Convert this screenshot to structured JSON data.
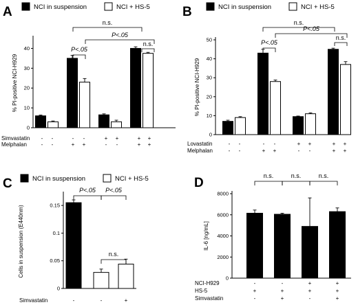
{
  "legend": {
    "filled_label": "NCI in suspension",
    "open_label": "NCI + HS-5",
    "filled_color": "#000000",
    "open_color": "#ffffff"
  },
  "chart_data": [
    {
      "panel": "A",
      "type": "bar",
      "ylabel": "% PI-positive NCI-H929",
      "ylim": [
        0,
        45
      ],
      "yticks": [
        "0",
        "10",
        "20",
        "30",
        "40"
      ],
      "series": [
        {
          "name": "NCI in suspension",
          "values": [
            6,
            35,
            6.5,
            40
          ],
          "errors": [
            0.4,
            1.5,
            0.5,
            0.8
          ]
        },
        {
          "name": "NCI + HS-5",
          "values": [
            3,
            23,
            3,
            37.5
          ],
          "errors": [
            0.4,
            1.8,
            0.8,
            0.5
          ]
        }
      ],
      "conditions": [
        {
          "label": "Simvastatin",
          "signs": [
            "-",
            "-",
            "-",
            "-",
            "+",
            "+",
            "+",
            "+"
          ]
        },
        {
          "label": "Melphalan",
          "signs": [
            "-",
            "-",
            "+",
            "+",
            "-",
            "-",
            "+",
            "+"
          ]
        }
      ],
      "annotations": [
        "P<.05",
        "n.s.",
        "P<.05",
        "n.s."
      ]
    },
    {
      "panel": "B",
      "type": "bar",
      "ylabel": "% PI-positive NCI-H929",
      "ylim": [
        0,
        50
      ],
      "yticks": [
        "0",
        "10",
        "20",
        "30",
        "40",
        "50"
      ],
      "series": [
        {
          "name": "NCI in suspension",
          "values": [
            7,
            43,
            9.5,
            45
          ],
          "errors": [
            0.6,
            2,
            0.3,
            0.6
          ]
        },
        {
          "name": "NCI + HS-5",
          "values": [
            9,
            28,
            11,
            37
          ],
          "errors": [
            0.5,
            0.8,
            0.5,
            1.5
          ]
        }
      ],
      "conditions": [
        {
          "label": "Lovastatin",
          "signs": [
            "-",
            "-",
            "-",
            "-",
            "+",
            "+",
            "+",
            "+"
          ]
        },
        {
          "label": "Melphalan",
          "signs": [
            "-",
            "-",
            "+",
            "+",
            "-",
            "-",
            "+",
            "+"
          ]
        }
      ],
      "annotations": [
        "P<.05",
        "n.s.",
        "P<.05",
        "n.s."
      ]
    },
    {
      "panel": "C",
      "type": "bar",
      "ylabel": "Cells in suspension (E440nm)",
      "ylim": [
        0,
        0.17
      ],
      "yticks": [
        "0",
        "0.05",
        "0.1",
        "0.15"
      ],
      "series": [
        {
          "name": "NCI in suspension",
          "values": [
            0.155,
            null,
            null
          ],
          "errors": [
            0.005,
            null,
            null
          ]
        },
        {
          "name": "NCI + HS-5",
          "values": [
            null,
            0.029,
            0.044
          ],
          "errors": [
            null,
            0.006,
            0.009
          ]
        }
      ],
      "conditions": [
        {
          "label": "Simvastatin",
          "signs": [
            "-",
            "-",
            "+"
          ]
        }
      ],
      "annotations": [
        "P<.05",
        "P<.05",
        "n.s."
      ]
    },
    {
      "panel": "D",
      "type": "bar",
      "ylabel": "IL-6 [ng/mL]",
      "ylim": [
        0,
        8000
      ],
      "yticks": [
        "0",
        "2000",
        "4000",
        "6000",
        "8000"
      ],
      "series": [
        {
          "name": "IL-6",
          "values": [
            6150,
            6050,
            4900,
            6300
          ],
          "errors": [
            300,
            100,
            2700,
            350
          ]
        }
      ],
      "conditions": [
        {
          "label": "NCI-H929",
          "signs": [
            "-",
            "-",
            "+",
            "+"
          ]
        },
        {
          "label": "HS-5",
          "signs": [
            "+",
            "+",
            "+",
            "+"
          ]
        },
        {
          "label": "Simvastatin",
          "signs": [
            "-",
            "+",
            "-",
            "+"
          ]
        }
      ],
      "annotations": [
        "n.s.",
        "n.s.",
        "n.s."
      ]
    }
  ]
}
